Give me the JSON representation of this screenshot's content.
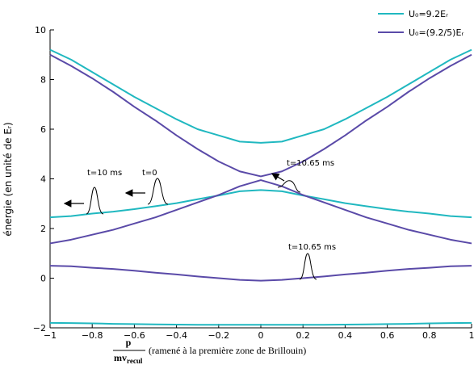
{
  "chart_data": {
    "type": "line",
    "ylabel": "énergie (en unité de Eᵣ)",
    "xlabel_numerator": "p",
    "xlabel_denominator": "mv",
    "xlabel_denominator_sub": "recul",
    "xlabel": "(ramené à la première zone de Brillouin)",
    "x": [
      -1,
      -0.9,
      -0.8,
      -0.7,
      -0.6,
      -0.5,
      -0.4,
      -0.3,
      -0.2,
      -0.1,
      0,
      0.1,
      0.2,
      0.3,
      0.4,
      0.5,
      0.6,
      0.7,
      0.8,
      0.9,
      1
    ],
    "series": [
      {
        "name": "U₀=9.2Eᵣ",
        "color": "#20b8c0",
        "bands": [
          [
            -1.8,
            -1.81,
            -1.82,
            -1.84,
            -1.85,
            -1.86,
            -1.87,
            -1.88,
            -1.88,
            -1.88,
            -1.88,
            -1.88,
            -1.88,
            -1.88,
            -1.87,
            -1.86,
            -1.85,
            -1.84,
            -1.82,
            -1.81,
            -1.8
          ],
          [
            2.45,
            2.5,
            2.6,
            2.68,
            2.78,
            2.9,
            3.02,
            3.18,
            3.33,
            3.5,
            3.55,
            3.5,
            3.33,
            3.18,
            3.02,
            2.9,
            2.78,
            2.68,
            2.6,
            2.5,
            2.45
          ],
          [
            9.2,
            8.8,
            8.3,
            7.8,
            7.3,
            6.85,
            6.4,
            6.0,
            5.75,
            5.5,
            5.45,
            5.5,
            5.75,
            6.0,
            6.4,
            6.85,
            7.3,
            7.8,
            8.3,
            8.8,
            9.2
          ]
        ]
      },
      {
        "name": "U₀=(9.2/5)Eᵣ",
        "color": "#5a4aa8",
        "bands": [
          [
            0.5,
            0.48,
            0.42,
            0.37,
            0.3,
            0.22,
            0.15,
            0.07,
            0,
            -0.07,
            -0.1,
            -0.07,
            0,
            0.07,
            0.15,
            0.22,
            0.3,
            0.37,
            0.42,
            0.48,
            0.5
          ],
          [
            1.4,
            1.55,
            1.75,
            1.95,
            2.2,
            2.45,
            2.75,
            3.05,
            3.35,
            3.7,
            3.95,
            3.7,
            3.35,
            3.05,
            2.75,
            2.45,
            2.2,
            1.95,
            1.75,
            1.55,
            1.4
          ],
          [
            9.0,
            8.55,
            8.05,
            7.5,
            6.9,
            6.35,
            5.75,
            5.2,
            4.7,
            4.3,
            4.1,
            4.3,
            4.7,
            5.2,
            5.75,
            6.35,
            6.9,
            7.5,
            8.05,
            8.55,
            9.0
          ]
        ]
      }
    ],
    "xlim": [
      -1,
      1
    ],
    "ylim": [
      -2,
      10
    ],
    "xticks": [
      {
        "value": -1,
        "label": "−1"
      },
      {
        "value": -0.8,
        "label": "−0.8"
      },
      {
        "value": -0.6,
        "label": "−0.6"
      },
      {
        "value": -0.4,
        "label": "−0.4"
      },
      {
        "value": -0.2,
        "label": "−0.2"
      },
      0,
      0.2,
      0.4,
      0.6,
      0.8,
      1
    ],
    "yticks": [
      {
        "value": -2,
        "label": "−2"
      },
      0,
      2,
      4,
      6,
      8,
      10
    ],
    "legend": "upper right",
    "annotations": [
      "t=10 ms",
      "t=0",
      "t=10.65 ms",
      "t=10.65 ms"
    ]
  }
}
